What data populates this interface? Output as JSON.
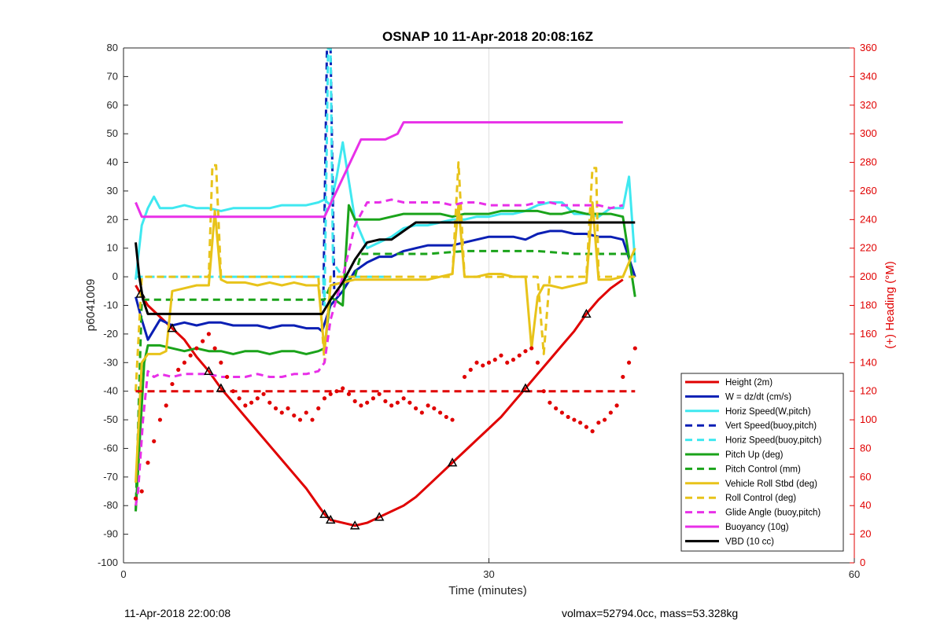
{
  "chart_data": {
    "type": "line",
    "title": "OSNAP 10 11-Apr-2018 20:08:16Z",
    "xlabel": "Time (minutes)",
    "ylabel": "p6041009",
    "ylabel_right": "(+) Heading (°M)",
    "xlim": [
      0,
      60
    ],
    "ylim": [
      -100,
      80
    ],
    "ylim_right": [
      0,
      360
    ],
    "xticks": [
      "0",
      "30",
      "60"
    ],
    "yticks": [
      "80",
      "70",
      "60",
      "50",
      "40",
      "30",
      "20",
      "10",
      "0",
      "-10",
      "-20",
      "-30",
      "-40",
      "-50",
      "-60",
      "-70",
      "-80",
      "-90",
      "-100"
    ],
    "yticks_right": [
      "360",
      "340",
      "320",
      "300",
      "280",
      "260",
      "240",
      "220",
      "200",
      "180",
      "160",
      "140",
      "120",
      "100",
      "80",
      "60",
      "40",
      "20",
      "0"
    ],
    "grid": "x-only",
    "legend_position": "bottom-right",
    "legend": [
      {
        "label": "Height (2m)",
        "color": "#e00000",
        "style": "solid"
      },
      {
        "label": "W = dz/dt (cm/s)",
        "color": "#0a1fb4",
        "style": "solid"
      },
      {
        "label": "Horiz Speed(W,pitch)",
        "color": "#3fe8f0",
        "style": "solid"
      },
      {
        "label": "Vert Speed(buoy,pitch)",
        "color": "#0a1fb4",
        "style": "dashed"
      },
      {
        "label": "Horiz Speed(buoy,pitch)",
        "color": "#3fe8f0",
        "style": "dashed"
      },
      {
        "label": "Pitch Up (deg)",
        "color": "#1aa31a",
        "style": "solid"
      },
      {
        "label": "Pitch Control (mm)",
        "color": "#1aa31a",
        "style": "dashed"
      },
      {
        "label": "Vehicle Roll Stbd (deg)",
        "color": "#e8c31a",
        "style": "solid"
      },
      {
        "label": "Roll Control (deg)",
        "color": "#e8c31a",
        "style": "dashed"
      },
      {
        "label": "Glide Angle (buoy,pitch)",
        "color": "#e830e8",
        "style": "dashed"
      },
      {
        "label": "Buoyancy (10g)",
        "color": "#e830e8",
        "style": "solid"
      },
      {
        "label": "VBD (10 cc)",
        "color": "#000000",
        "style": "solid"
      }
    ],
    "series": [
      {
        "name": "Height (2m)",
        "axis": "left",
        "color": "#e00000",
        "style": "solid",
        "x": [
          1,
          1.4,
          2,
          3,
          4,
          5,
          6,
          7,
          8,
          9,
          10,
          11,
          12,
          13,
          14,
          15,
          16,
          16.5,
          17,
          18,
          19,
          20,
          21,
          22,
          23,
          24,
          25,
          26,
          27,
          28,
          29,
          30,
          31,
          32,
          33,
          34,
          35,
          36,
          37,
          38,
          39,
          40,
          41
        ],
        "y": [
          -3,
          -6,
          -10,
          -14,
          -18,
          -22,
          -28,
          -33,
          -39,
          -44,
          -49,
          -54,
          -59,
          -64,
          -69,
          -74,
          -80,
          -83,
          -85,
          -86,
          -87,
          -86,
          -84,
          -82,
          -80,
          -77,
          -73,
          -69,
          -65,
          -61,
          -57,
          -53,
          -49,
          -44,
          -39,
          -34,
          -29,
          -24,
          -19,
          -13,
          -8,
          -4,
          -1
        ]
      },
      {
        "name": "W = dz/dt (cm/s)",
        "axis": "left",
        "color": "#0a1fb4",
        "style": "solid",
        "x": [
          1,
          1.5,
          2,
          3,
          4,
          5,
          6,
          7,
          8,
          9,
          10,
          11,
          12,
          13,
          14,
          15,
          16,
          16.3,
          17,
          18,
          19,
          20,
          21,
          22,
          23,
          24,
          25,
          26,
          27,
          28,
          29,
          30,
          31,
          32,
          33,
          34,
          35,
          36,
          37,
          38,
          39,
          40,
          41,
          42
        ],
        "y": [
          -7,
          -15,
          -22,
          -15,
          -17,
          -16,
          -17,
          -16,
          -16,
          -17,
          -17,
          -17,
          -18,
          -17,
          -17,
          -18,
          -18,
          -19,
          -10,
          -5,
          2,
          5,
          7,
          7,
          9,
          10,
          11,
          11,
          11,
          12,
          13,
          14,
          14,
          14,
          13,
          15,
          16,
          16,
          15,
          15,
          14,
          14,
          13,
          0
        ]
      },
      {
        "name": "Horiz Speed(W,pitch)",
        "axis": "left",
        "color": "#3fe8f0",
        "style": "solid",
        "x": [
          1,
          1.5,
          2,
          2.5,
          3,
          4,
          5,
          6,
          7,
          8,
          9,
          10,
          11,
          12,
          13,
          14,
          15,
          16,
          16.5,
          17,
          17.5,
          18,
          19,
          20,
          21,
          22,
          23,
          24,
          25,
          26,
          27,
          28,
          29,
          30,
          31,
          32,
          33,
          34,
          35,
          36,
          37,
          38,
          39,
          40,
          41,
          41.5,
          42
        ],
        "y": [
          -1,
          18,
          24,
          28,
          24,
          24,
          25,
          24,
          24,
          23,
          24,
          24,
          24,
          24,
          25,
          25,
          25,
          26,
          27,
          25,
          35,
          47,
          20,
          10,
          12,
          14,
          17,
          18,
          18,
          19,
          20,
          20,
          21,
          21,
          22,
          22,
          23,
          25,
          26,
          26,
          22,
          22,
          21,
          24,
          24,
          35,
          5
        ]
      },
      {
        "name": "Vert Speed(buoy,pitch)",
        "axis": "left",
        "color": "#0a1fb4",
        "style": "dashed",
        "x": [
          16.4,
          16.7,
          17.0,
          17.3
        ],
        "y": [
          -10,
          80,
          80,
          -5
        ]
      },
      {
        "name": "Horiz Speed(buoy,pitch)",
        "axis": "left",
        "color": "#3fe8f0",
        "style": "dashed",
        "x": [
          1,
          5,
          10,
          15,
          16.4,
          16.5,
          16.8,
          17.0,
          17.2,
          18,
          20,
          22
        ],
        "y": [
          0,
          0,
          0,
          0,
          0,
          -10,
          80,
          80,
          5,
          0,
          0,
          0
        ]
      },
      {
        "name": "Pitch Up (deg)",
        "axis": "left",
        "color": "#1aa31a",
        "style": "solid",
        "x": [
          1,
          1.3,
          1.7,
          2,
          3,
          4,
          5,
          6,
          7,
          8,
          9,
          10,
          11,
          12,
          13,
          14,
          15,
          16,
          16.5,
          17,
          18,
          18.5,
          19,
          20,
          21,
          22,
          23,
          24,
          25,
          26,
          27,
          28,
          29,
          30,
          31,
          32,
          33,
          34,
          35,
          36,
          37,
          38,
          39,
          40,
          41,
          42
        ],
        "y": [
          -82,
          -60,
          -30,
          -24,
          -24,
          -25,
          -26,
          -25,
          -26,
          -26,
          -27,
          -26,
          -26,
          -27,
          -26,
          -26,
          -27,
          -26,
          -25,
          -7,
          -10,
          25,
          20,
          20,
          20,
          21,
          22,
          22,
          22,
          22,
          21,
          22,
          22,
          22,
          23,
          23,
          23,
          23,
          22,
          22,
          23,
          22,
          22,
          22,
          21,
          -7
        ]
      },
      {
        "name": "Pitch Control (mm)",
        "axis": "left",
        "color": "#1aa31a",
        "style": "dashed",
        "x": [
          1,
          1.5,
          2,
          4,
          6,
          8,
          10,
          12,
          14,
          16,
          16.5,
          17,
          18,
          19,
          19.5,
          20,
          22,
          25,
          28,
          31,
          34,
          37,
          40,
          42
        ],
        "y": [
          -82,
          -8,
          -8,
          -8,
          -8,
          -8,
          -8,
          -8,
          -8,
          -8,
          -8,
          -3,
          -2,
          0,
          8,
          8,
          8,
          8,
          9,
          9,
          9,
          8,
          8,
          8
        ]
      },
      {
        "name": "Vehicle Roll Stbd (deg)",
        "axis": "left",
        "color": "#e8c31a",
        "style": "solid",
        "x": [
          1,
          1.5,
          2,
          2.5,
          3,
          3.5,
          4,
          5,
          6,
          7,
          7.5,
          8,
          8.5,
          9,
          10,
          11,
          12,
          13,
          14,
          15,
          16,
          16.5,
          17,
          18,
          19,
          20,
          21,
          22,
          23,
          24,
          25,
          26,
          27,
          27.5,
          28,
          29,
          30,
          31,
          32,
          33,
          33.5,
          34,
          34.5,
          35,
          36,
          37,
          38,
          38.5,
          39,
          40,
          41,
          42
        ],
        "y": [
          -72,
          -30,
          -27,
          -27,
          -27,
          -26,
          -5,
          -4,
          -3,
          -3,
          23,
          -1,
          -2,
          -2,
          -2,
          -3,
          -2,
          -3,
          -2,
          -3,
          -3,
          -26,
          -3,
          -2,
          -1,
          -1,
          -1,
          -1,
          -1,
          -1,
          -1,
          0,
          1,
          25,
          0,
          0,
          1,
          1,
          0,
          0,
          -25,
          -7,
          -3,
          -3,
          -4,
          -3,
          -2,
          26,
          -1,
          -1,
          0,
          10
        ]
      },
      {
        "name": "Roll Control (deg)",
        "axis": "left",
        "color": "#e8c31a",
        "style": "dashed",
        "x": [
          1,
          1.5,
          2,
          3,
          4,
          5,
          6,
          7,
          7.3,
          7.6,
          8,
          10,
          12,
          14,
          16,
          16.5,
          17,
          20,
          25,
          27,
          27.5,
          28,
          30,
          33,
          34,
          34.5,
          35,
          38,
          38.5,
          38.8,
          39,
          40,
          41,
          42
        ],
        "y": [
          -40,
          0,
          0,
          0,
          0,
          0,
          0,
          0,
          39,
          39,
          0,
          0,
          0,
          0,
          0,
          -30,
          0,
          0,
          0,
          0,
          40,
          0,
          0,
          0,
          0,
          -27,
          0,
          0,
          38,
          38,
          0,
          0,
          0,
          0
        ]
      },
      {
        "name": "Glide Angle (buoy,pitch)",
        "axis": "left",
        "color": "#e830e8",
        "style": "dashed",
        "x": [
          1,
          1.2,
          1.6,
          2,
          2.5,
          3,
          4,
          5,
          6,
          7,
          8,
          9,
          10,
          11,
          12,
          13,
          14,
          15,
          16,
          16.5,
          17,
          18,
          19,
          20,
          21,
          22,
          23,
          24,
          25,
          26,
          27,
          28,
          29,
          30,
          31,
          32,
          33,
          34,
          35,
          36,
          37,
          38,
          39,
          40,
          41
        ],
        "y": [
          -80,
          -75,
          -50,
          -33,
          -35,
          -34,
          -35,
          -34,
          -34,
          -34,
          -35,
          -35,
          -35,
          -34,
          -35,
          -35,
          -34,
          -34,
          -33,
          -30,
          -15,
          0,
          18,
          26,
          26,
          27,
          26,
          26,
          26,
          26,
          25,
          26,
          26,
          25,
          25,
          25,
          25,
          26,
          26,
          25,
          25,
          25,
          25,
          24,
          25
        ]
      },
      {
        "name": "Buoyancy (10g)",
        "axis": "left",
        "color": "#e830e8",
        "style": "solid",
        "x": [
          1,
          1.5,
          2,
          5,
          10,
          14,
          16,
          16.5,
          19.5,
          20,
          21.5,
          22.5,
          23,
          24,
          30,
          35,
          40,
          41
        ],
        "y": [
          26,
          21,
          21,
          21,
          21,
          21,
          21,
          21,
          48,
          48,
          48,
          50,
          54,
          54,
          54,
          54,
          54,
          54
        ]
      },
      {
        "name": "VBD (10 cc)",
        "axis": "left",
        "color": "#000000",
        "style": "solid",
        "x": [
          1,
          1.3,
          1.6,
          2,
          5,
          10,
          15,
          16.3,
          17,
          18,
          19,
          20,
          21,
          22,
          23,
          24,
          30,
          35,
          40,
          42
        ],
        "y": [
          12,
          0,
          -8,
          -13,
          -13,
          -13,
          -13,
          -13,
          -8,
          -2,
          6,
          12,
          13,
          13,
          16,
          19,
          19,
          19,
          19,
          19
        ]
      },
      {
        "name": "Pitch control reference",
        "axis": "left",
        "color": "#e00000",
        "style": "dashed",
        "x": [
          1,
          42
        ],
        "y": [
          -40,
          -40
        ]
      },
      {
        "name": "Heading",
        "axis": "right",
        "color": "#e00000",
        "style": "dots",
        "x": [
          1,
          1.5,
          2,
          2.5,
          3,
          3.5,
          4,
          4.5,
          5,
          5.5,
          6,
          6.5,
          7,
          7.5,
          8,
          8.5,
          9,
          9.5,
          10,
          10.5,
          11,
          11.5,
          12,
          12.5,
          13,
          13.5,
          14,
          14.5,
          15,
          15.5,
          16,
          16.5,
          17,
          17.5,
          18,
          18.5,
          19,
          19.5,
          20,
          20.5,
          21,
          21.5,
          22,
          22.5,
          23,
          23.5,
          24,
          24.5,
          25,
          25.5,
          26,
          26.5,
          27,
          28,
          28.5,
          29,
          29.5,
          30,
          30.5,
          31,
          31.5,
          32,
          32.5,
          33,
          33.5,
          34,
          34.5,
          35,
          35.5,
          36,
          36.5,
          37,
          37.5,
          38,
          38.5,
          39,
          39.5,
          40,
          40.5,
          41,
          41.5,
          42
        ],
        "y": [
          45,
          50,
          70,
          85,
          100,
          110,
          125,
          135,
          140,
          145,
          150,
          155,
          160,
          150,
          140,
          130,
          120,
          115,
          110,
          112,
          115,
          118,
          112,
          108,
          105,
          108,
          103,
          100,
          105,
          100,
          108,
          115,
          118,
          120,
          122,
          118,
          113,
          110,
          112,
          115,
          118,
          113,
          110,
          112,
          115,
          112,
          108,
          105,
          110,
          108,
          105,
          102,
          100,
          130,
          135,
          140,
          138,
          140,
          142,
          145,
          140,
          142,
          145,
          148,
          150,
          140,
          120,
          112,
          108,
          105,
          102,
          100,
          98,
          95,
          92,
          98,
          100,
          105,
          110,
          130,
          140,
          150
        ]
      }
    ]
  },
  "footer": {
    "left": "11-Apr-2018 22:00:08",
    "right": "volmax=52794.0cc, mass=53.328kg"
  }
}
